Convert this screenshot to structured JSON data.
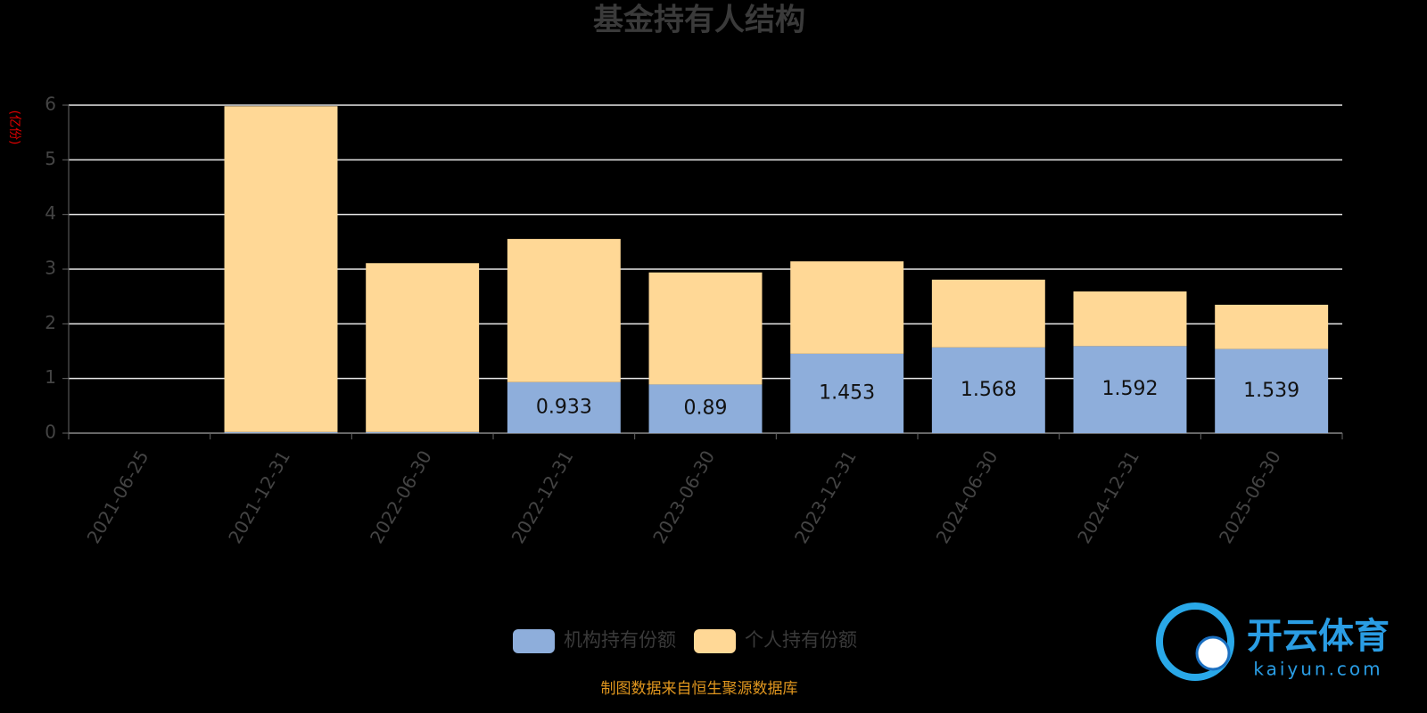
{
  "chart_data": {
    "type": "bar",
    "stacked": true,
    "title": "基金持有人结构",
    "y_axis_label": "(亿份)",
    "categories": [
      "2021-06-25",
      "2021-12-31",
      "2022-06-30",
      "2022-12-31",
      "2023-06-30",
      "2023-12-31",
      "2024-06-30",
      "2024-12-31",
      "2025-06-30"
    ],
    "series": [
      {
        "name": "机构持有份额",
        "color": "#8eaedb",
        "values": [
          null,
          0.02,
          0.02,
          0.933,
          0.89,
          1.453,
          1.568,
          1.592,
          1.539
        ]
      },
      {
        "name": "个人持有份额",
        "color": "#ffd896",
        "values": [
          null,
          5.96,
          3.09,
          2.62,
          2.05,
          1.69,
          1.24,
          1.0,
          0.81
        ]
      }
    ],
    "ylim": [
      0,
      6
    ],
    "yticks": [
      0,
      1,
      2,
      3,
      4,
      5,
      6
    ],
    "grid": true,
    "source": "制图数据来自恒生聚源数据库"
  },
  "watermark": {
    "title": "开云体育",
    "subtitle": "kaiyun.com"
  }
}
